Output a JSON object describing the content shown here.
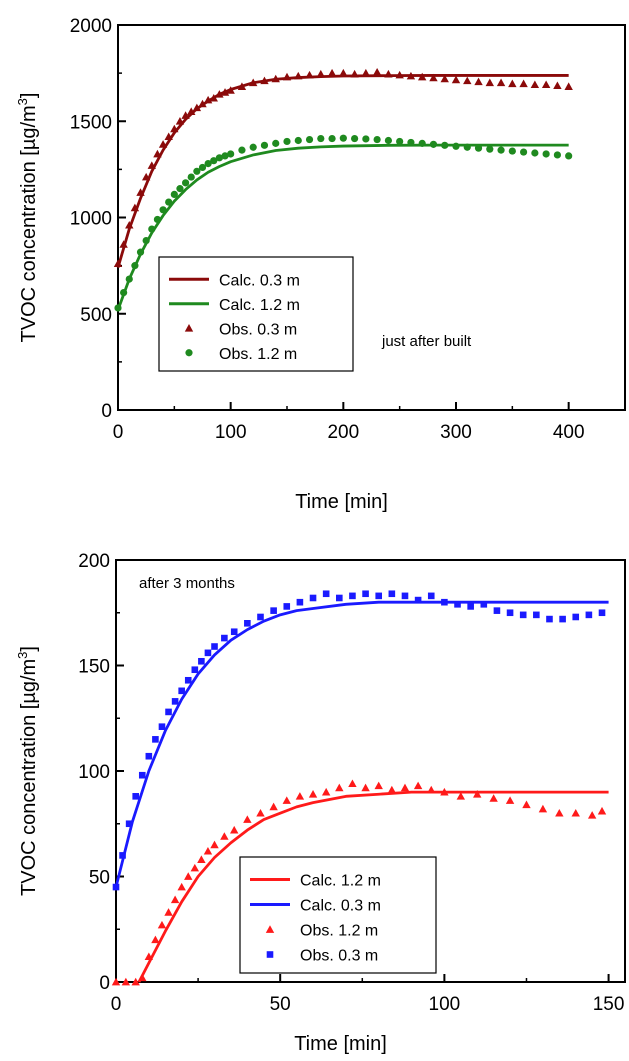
{
  "chart_data": [
    {
      "type": "scatter",
      "annotation": "just after built",
      "xlabel": "Time [min]",
      "ylabel_text": "TVOC concentration [µg/m",
      "ylabel_sup": "3",
      "ylabel_close": "]",
      "xlim": [
        0,
        450
      ],
      "ylim": [
        0,
        2000
      ],
      "x_ticks": [
        0,
        100,
        200,
        300,
        400
      ],
      "y_ticks": [
        0,
        500,
        1000,
        1500,
        2000
      ],
      "x_tick_labels": [
        "0",
        "100",
        "200",
        "300",
        "400"
      ],
      "y_tick_labels": [
        "0",
        "500",
        "1000",
        "1500",
        "2000"
      ],
      "legend_position": "lower-left",
      "legend": [
        {
          "label": "Calc. 0.3 m",
          "kind": "line",
          "color": "#8b0a0a"
        },
        {
          "label": "Calc. 1.2 m",
          "kind": "line",
          "color": "#1f8a1f"
        },
        {
          "label": "Obs.  0.3 m",
          "kind": "triangle",
          "color": "#8b0a0a"
        },
        {
          "label": "Obs.  1.2 m",
          "kind": "circle",
          "color": "#1f8a1f"
        }
      ],
      "series": [
        {
          "name": "Calc. 0.3 m",
          "kind": "line",
          "color": "#8b0a0a",
          "x": [
            0,
            10,
            20,
            30,
            40,
            50,
            60,
            70,
            80,
            90,
            100,
            120,
            140,
            160,
            180,
            200,
            240,
            280,
            320,
            360,
            400
          ],
          "y": [
            740,
            940,
            1100,
            1240,
            1350,
            1440,
            1510,
            1565,
            1605,
            1640,
            1665,
            1700,
            1718,
            1727,
            1732,
            1735,
            1737,
            1738,
            1738,
            1738,
            1738
          ]
        },
        {
          "name": "Calc. 1.2 m",
          "kind": "line",
          "color": "#1f8a1f",
          "x": [
            0,
            10,
            20,
            30,
            40,
            50,
            60,
            70,
            80,
            90,
            100,
            120,
            140,
            160,
            180,
            200,
            240,
            280,
            320,
            360,
            400
          ],
          "y": [
            520,
            680,
            810,
            920,
            1010,
            1085,
            1145,
            1195,
            1235,
            1265,
            1290,
            1325,
            1348,
            1360,
            1367,
            1371,
            1375,
            1376,
            1376,
            1376,
            1376
          ]
        },
        {
          "name": "Obs.  0.3 m",
          "kind": "triangle",
          "color": "#8b0a0a",
          "x": [
            0,
            5,
            10,
            15,
            20,
            25,
            30,
            35,
            40,
            45,
            50,
            55,
            60,
            65,
            70,
            75,
            80,
            85,
            90,
            95,
            100,
            110,
            120,
            130,
            140,
            150,
            160,
            170,
            180,
            190,
            200,
            210,
            220,
            230,
            240,
            250,
            260,
            270,
            280,
            290,
            300,
            310,
            320,
            330,
            340,
            350,
            360,
            370,
            380,
            390,
            400
          ],
          "y": [
            760,
            860,
            960,
            1050,
            1130,
            1210,
            1270,
            1330,
            1380,
            1420,
            1460,
            1500,
            1530,
            1550,
            1570,
            1590,
            1610,
            1620,
            1640,
            1650,
            1660,
            1680,
            1700,
            1710,
            1720,
            1730,
            1735,
            1740,
            1745,
            1750,
            1750,
            1745,
            1750,
            1755,
            1745,
            1740,
            1735,
            1730,
            1725,
            1720,
            1715,
            1710,
            1705,
            1700,
            1700,
            1695,
            1695,
            1690,
            1690,
            1685,
            1680
          ]
        },
        {
          "name": "Obs.  1.2 m",
          "kind": "circle",
          "color": "#1f8a1f",
          "x": [
            0,
            5,
            10,
            15,
            20,
            25,
            30,
            35,
            40,
            45,
            50,
            55,
            60,
            65,
            70,
            75,
            80,
            85,
            90,
            95,
            100,
            110,
            120,
            130,
            140,
            150,
            160,
            170,
            180,
            190,
            200,
            210,
            220,
            230,
            240,
            250,
            260,
            270,
            280,
            290,
            300,
            310,
            320,
            330,
            340,
            350,
            360,
            370,
            380,
            390,
            400
          ],
          "y": [
            530,
            610,
            680,
            750,
            820,
            880,
            940,
            990,
            1040,
            1080,
            1120,
            1150,
            1180,
            1210,
            1240,
            1260,
            1280,
            1295,
            1310,
            1320,
            1330,
            1350,
            1365,
            1375,
            1385,
            1395,
            1400,
            1405,
            1410,
            1410,
            1412,
            1410,
            1408,
            1405,
            1400,
            1395,
            1390,
            1385,
            1380,
            1375,
            1370,
            1365,
            1360,
            1355,
            1350,
            1345,
            1340,
            1335,
            1330,
            1325,
            1320
          ]
        }
      ]
    },
    {
      "type": "scatter",
      "annotation": "after 3 months",
      "xlabel": "Time [min]",
      "ylabel_text": "TVOC concentration [µg/m",
      "ylabel_sup": "3",
      "ylabel_close": "]",
      "xlim": [
        0,
        155
      ],
      "ylim": [
        0,
        200
      ],
      "x_ticks": [
        0,
        50,
        100,
        150
      ],
      "y_ticks": [
        0,
        50,
        100,
        150,
        200
      ],
      "x_tick_labels": [
        "0",
        "50",
        "100",
        "150"
      ],
      "y_tick_labels": [
        "0",
        "50",
        "100",
        "150",
        "200"
      ],
      "legend_position": "bottom-center",
      "legend": [
        {
          "label": "Calc. 1.2 m",
          "kind": "line",
          "color": "#ff1a1a"
        },
        {
          "label": "Calc. 0.3 m",
          "kind": "line",
          "color": "#1a1aff"
        },
        {
          "label": "Obs. 1.2 m",
          "kind": "triangle",
          "color": "#ff1a1a"
        },
        {
          "label": "Obs. 0.3 m",
          "kind": "square",
          "color": "#1a1aff"
        }
      ],
      "series": [
        {
          "name": "Calc. 1.2 m",
          "kind": "line",
          "color": "#ff1a1a",
          "x": [
            7,
            10,
            15,
            20,
            25,
            30,
            35,
            40,
            45,
            50,
            55,
            60,
            70,
            80,
            90,
            100,
            110,
            120,
            130,
            140,
            150
          ],
          "y": [
            0,
            9,
            24,
            38,
            50,
            59,
            66,
            72,
            77,
            80,
            83,
            85,
            88,
            89,
            90,
            90,
            90,
            90,
            90,
            90,
            90
          ]
        },
        {
          "name": "Calc. 0.3 m",
          "kind": "line",
          "color": "#1a1aff",
          "x": [
            0,
            5,
            10,
            15,
            20,
            25,
            30,
            35,
            40,
            45,
            50,
            55,
            60,
            70,
            80,
            90,
            100,
            110,
            120,
            130,
            140,
            150
          ],
          "y": [
            45,
            76,
            100,
            119,
            134,
            146,
            155,
            162,
            167,
            171,
            174,
            176,
            177,
            179,
            180,
            180,
            180,
            180,
            180,
            180,
            180,
            180
          ]
        },
        {
          "name": "Obs. 1.2 m",
          "kind": "triangle",
          "color": "#ff1a1a",
          "x": [
            0,
            3,
            6,
            8,
            10,
            12,
            14,
            16,
            18,
            20,
            22,
            24,
            26,
            28,
            30,
            33,
            36,
            40,
            44,
            48,
            52,
            56,
            60,
            64,
            68,
            72,
            76,
            80,
            84,
            88,
            92,
            96,
            100,
            105,
            110,
            115,
            120,
            125,
            130,
            135,
            140,
            145,
            148
          ],
          "y": [
            0,
            0,
            0,
            2,
            12,
            20,
            27,
            33,
            39,
            45,
            50,
            54,
            58,
            62,
            65,
            69,
            72,
            77,
            80,
            83,
            86,
            88,
            89,
            90,
            92,
            94,
            92,
            93,
            91,
            92,
            93,
            91,
            90,
            88,
            89,
            87,
            86,
            84,
            82,
            80,
            80,
            79,
            81
          ]
        },
        {
          "name": "Obs. 0.3 m",
          "kind": "square",
          "color": "#1a1aff",
          "x": [
            0,
            2,
            4,
            6,
            8,
            10,
            12,
            14,
            16,
            18,
            20,
            22,
            24,
            26,
            28,
            30,
            33,
            36,
            40,
            44,
            48,
            52,
            56,
            60,
            64,
            68,
            72,
            76,
            80,
            84,
            88,
            92,
            96,
            100,
            104,
            108,
            112,
            116,
            120,
            124,
            128,
            132,
            136,
            140,
            144,
            148
          ],
          "y": [
            45,
            60,
            75,
            88,
            98,
            107,
            115,
            121,
            128,
            133,
            138,
            143,
            148,
            152,
            156,
            159,
            163,
            166,
            170,
            173,
            176,
            178,
            180,
            182,
            184,
            182,
            183,
            184,
            183,
            184,
            183,
            181,
            183,
            180,
            179,
            178,
            179,
            176,
            175,
            174,
            174,
            172,
            172,
            173,
            174,
            175
          ]
        }
      ]
    }
  ]
}
